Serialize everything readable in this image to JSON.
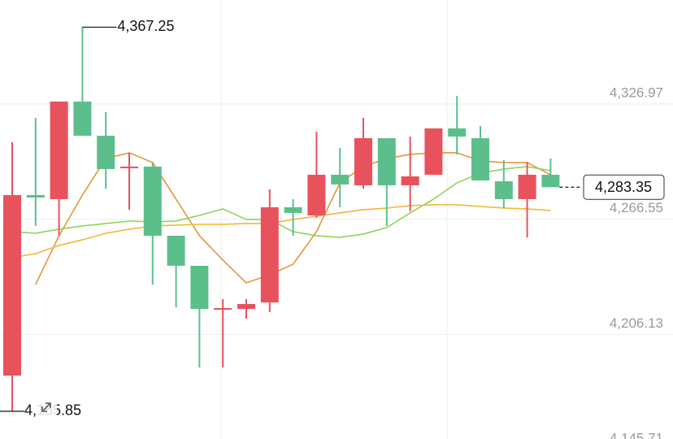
{
  "chart_data": {
    "type": "candlestick",
    "categories": [
      null,
      null,
      null,
      null,
      null,
      null,
      null,
      null,
      null,
      null,
      null,
      null,
      null,
      null,
      null,
      null,
      null,
      null,
      null,
      null,
      null,
      null,
      null,
      null
    ],
    "open": [
      4184.55,
      4279.21,
      4277.08,
      4328.25,
      4310.34,
      4293.28,
      4294.14,
      4257.89,
      4242.12,
      4219.09,
      4219.52,
      4222.93,
      4272.82,
      4268.55,
      4289.87,
      4284.33,
      4309.06,
      4284.33,
      4289.87,
      4314.18,
      4309.06,
      4286.46,
      4277.08,
      4289.87
    ],
    "high": [
      4306.93,
      4319.72,
      4328.25,
      4367.25,
      4322.71,
      4301.39,
      4296.27,
      4257.89,
      4242.12,
      4224.63,
      4224.63,
      4282.2,
      4277.08,
      4312.47,
      4303.94,
      4319.72,
      4309.06,
      4309.91,
      4314.18,
      4331.23,
      4315.46,
      4297.55,
      4296.27,
      4298.4
    ],
    "low": [
      4165.85,
      4263.01,
      4257.89,
      4310.34,
      4282.62,
      4271.54,
      4232.3,
      4220.37,
      4188.82,
      4188.82,
      4214.4,
      4217.81,
      4257.89,
      4267.27,
      4272.82,
      4282.62,
      4263.01,
      4270.69,
      4289.87,
      4300.53,
      4286.89,
      4272.39,
      4257.04,
      4283.35
    ],
    "close": [
      4279.21,
      4277.93,
      4328.25,
      4310.34,
      4292.86,
      4294.14,
      4257.89,
      4242.12,
      4219.52,
      4219.94,
      4222.07,
      4272.82,
      4269.83,
      4289.87,
      4284.76,
      4309.06,
      4284.33,
      4289.02,
      4314.18,
      4309.91,
      4286.89,
      4277.08,
      4289.87,
      4283.35
    ],
    "up_color": "#e8525d",
    "down_color": "#5cbf8b",
    "ma_lines": [
      {
        "color": "#e8953a",
        "values": [
          null,
          4232.31,
          4257.89,
          4279.21,
          4298.4,
          4301.39,
          4296.27,
          4277.08,
          4257.89,
          4245.1,
          4233.16,
          4237.43,
          4242.97,
          4260.03,
          4285.61,
          4294.14,
          4298.4,
          4300.53,
          4301.39,
          4301.39,
          4297.12,
          4296.27,
          4296.27,
          4289.87
        ]
      },
      {
        "color": "#8bd65a",
        "values": [
          4260.03,
          4259.17,
          4261.3,
          4263.01,
          4264.29,
          4265.57,
          4265.14,
          4265.57,
          4268.55,
          4271.96,
          4266.42,
          4266.42,
          4260.03,
          4257.89,
          4257.04,
          4258.75,
          4262.16,
          4269.83,
          4277.08,
          4285.61,
          4290.73,
          4292.86,
          4294.14,
          4292.01
        ]
      },
      {
        "color": "#f0b93a",
        "values": [
          4246.38,
          4248.51,
          4252.78,
          4255.76,
          4259.17,
          4261.3,
          4263.01,
          4263.44,
          4263.86,
          4263.86,
          4264.29,
          4264.29,
          4266.42,
          4268.13,
          4269.83,
          4271.54,
          4272.39,
          4273.67,
          4274.1,
          4274.1,
          4273.24,
          4272.39,
          4271.96,
          4271.11
        ]
      }
    ],
    "ylim": [
      4151.3,
      4381.5
    ],
    "yticks": [
      {
        "value": 4326.97,
        "label": "4,326.97"
      },
      {
        "value": 4266.55,
        "label": "4,266.55"
      },
      {
        "value": 4206.13,
        "label": "4,206.13"
      },
      {
        "value": 4145.71,
        "label": "4,145.71"
      }
    ],
    "grid": true,
    "high_marker": {
      "value": 4367.25,
      "label": "4,367.25"
    },
    "low_marker": {
      "value": 4165.85,
      "label": "4,165.85"
    },
    "last_price": {
      "value": 4283.35,
      "label": "4,283.35"
    }
  }
}
